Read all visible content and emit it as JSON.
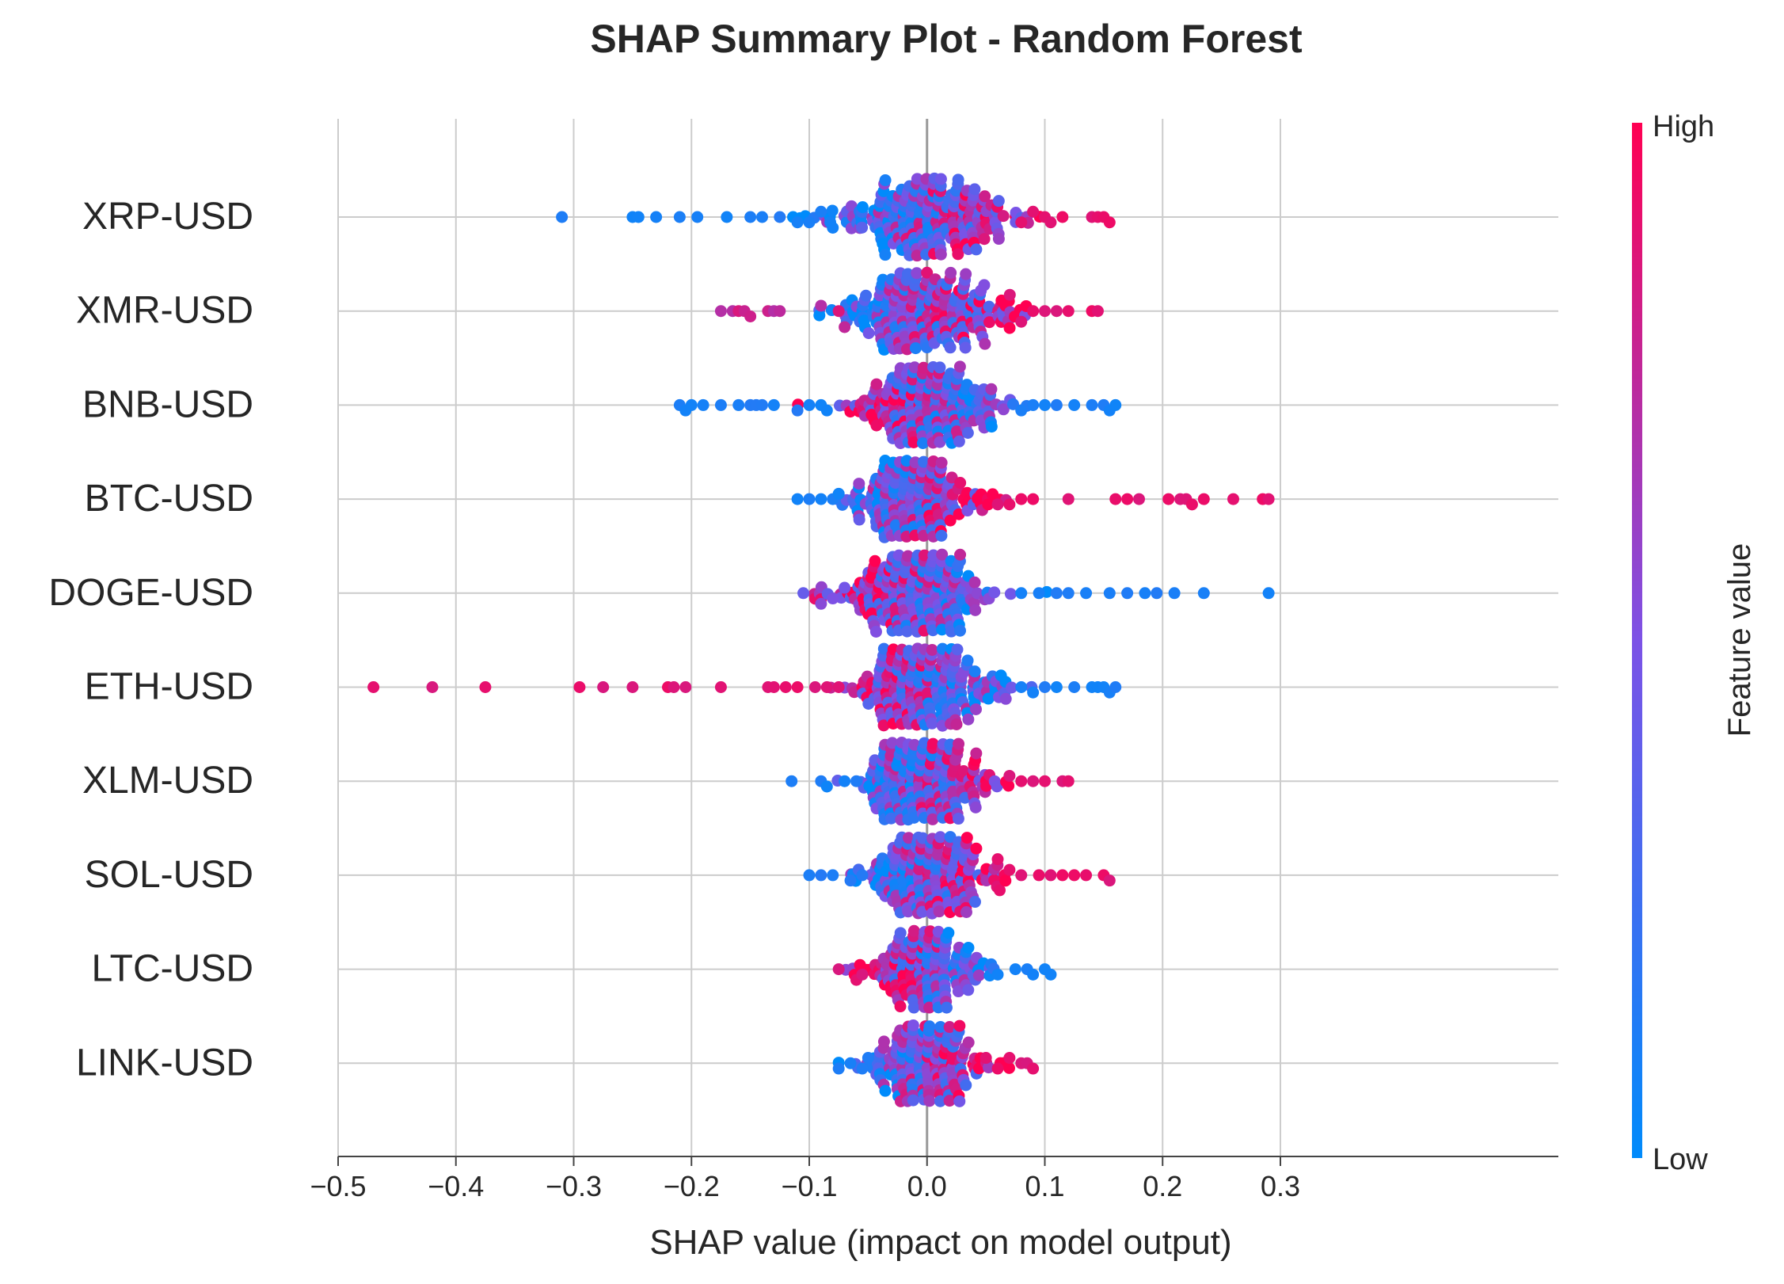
{
  "chart_data": {
    "type": "scatter",
    "subtype": "shap-beeswarm",
    "title": "SHAP Summary Plot - Random Forest",
    "xlabel": "SHAP value (impact on model output)",
    "ylabel": "",
    "xlim": [
      -0.5,
      0.33
    ],
    "x_ticks": [
      -0.5,
      -0.4,
      -0.3,
      -0.2,
      -0.1,
      0.0,
      0.1,
      0.2,
      0.3
    ],
    "x_tick_labels": [
      "−0.5",
      "−0.4",
      "−0.3",
      "−0.2",
      "−0.1",
      "0.0",
      "0.1",
      "0.2",
      "0.3"
    ],
    "grid": true,
    "zero_line": true,
    "colorbar": {
      "label": "Feature value",
      "high_label": "High",
      "low_label": "Low",
      "low_color": "#008bfb",
      "mid_color": "#7c52e6",
      "high_color": "#ff0052"
    },
    "features": [
      {
        "name": "XRP-USD",
        "min": -0.31,
        "max": 0.155,
        "center": 0.0,
        "spread": 0.05,
        "tail_left_color": "low",
        "tail_right_color": "high",
        "tail_left": [
          -0.31,
          -0.25,
          -0.245,
          -0.23,
          -0.21,
          -0.195,
          -0.17,
          -0.15,
          -0.14,
          -0.125,
          -0.11,
          -0.1,
          -0.09,
          -0.08
        ],
        "tail_right": [
          0.08,
          0.09,
          0.1,
          0.105,
          0.115,
          0.14,
          0.145,
          0.15,
          0.155
        ]
      },
      {
        "name": "XMR-USD",
        "min": -0.175,
        "max": 0.145,
        "center": 0.0,
        "spread": 0.045,
        "tail_left_color": "high-mid",
        "tail_right_color": "high",
        "tail_left": [
          -0.175,
          -0.165,
          -0.16,
          -0.155,
          -0.15,
          -0.135,
          -0.13,
          -0.125,
          -0.09,
          -0.075,
          -0.07
        ],
        "tail_right": [
          0.08,
          0.09,
          0.1,
          0.11,
          0.12,
          0.14,
          0.145
        ]
      },
      {
        "name": "BNB-USD",
        "min": -0.21,
        "max": 0.16,
        "center": 0.0,
        "spread": 0.04,
        "tail_left_color": "low",
        "tail_right_color": "low",
        "tail_left": [
          -0.21,
          -0.205,
          -0.2,
          -0.19,
          -0.175,
          -0.16,
          -0.15,
          -0.145,
          -0.14,
          -0.13,
          -0.11,
          -0.1,
          -0.09,
          -0.085
        ],
        "tail_right": [
          0.08,
          0.09,
          0.1,
          0.11,
          0.125,
          0.14,
          0.15,
          0.155,
          0.16
        ]
      },
      {
        "name": "BTC-USD",
        "min": -0.11,
        "max": 0.29,
        "center": -0.01,
        "spread": 0.035,
        "tail_left_color": "low",
        "tail_right_color": "high",
        "tail_left": [
          -0.11,
          -0.1,
          -0.09,
          -0.08,
          -0.075
        ],
        "tail_right": [
          0.06,
          0.07,
          0.08,
          0.09,
          0.12,
          0.16,
          0.17,
          0.18,
          0.205,
          0.215,
          0.22,
          0.225,
          0.235,
          0.26,
          0.285,
          0.29
        ]
      },
      {
        "name": "DOGE-USD",
        "min": -0.105,
        "max": 0.29,
        "center": -0.01,
        "spread": 0.04,
        "tail_left_color": "mid",
        "tail_right_color": "low",
        "tail_left": [
          -0.105,
          -0.09,
          -0.08,
          -0.07
        ],
        "tail_right": [
          0.08,
          0.095,
          0.11,
          0.12,
          0.135,
          0.155,
          0.17,
          0.185,
          0.195,
          0.21,
          0.235,
          0.29
        ]
      },
      {
        "name": "ETH-USD",
        "min": -0.47,
        "max": 0.16,
        "center": 0.0,
        "spread": 0.04,
        "tail_left_color": "high",
        "tail_right_color": "low",
        "tail_left": [
          -0.47,
          -0.42,
          -0.375,
          -0.295,
          -0.275,
          -0.25,
          -0.22,
          -0.215,
          -0.205,
          -0.175,
          -0.135,
          -0.13,
          -0.12,
          -0.11,
          -0.095,
          -0.085,
          -0.075
        ],
        "tail_right": [
          0.08,
          0.09,
          0.1,
          0.11,
          0.125,
          0.14,
          0.145,
          0.15,
          0.155,
          0.16
        ]
      },
      {
        "name": "XLM-USD",
        "min": -0.115,
        "max": 0.12,
        "center": 0.0,
        "spread": 0.035,
        "tail_left_color": "low",
        "tail_right_color": "high",
        "tail_left": [
          -0.115,
          -0.09,
          -0.085,
          -0.07,
          -0.06
        ],
        "tail_right": [
          0.07,
          0.08,
          0.09,
          0.1,
          0.115,
          0.12
        ]
      },
      {
        "name": "SOL-USD",
        "min": -0.1,
        "max": 0.155,
        "center": 0.0,
        "spread": 0.035,
        "tail_left_color": "low",
        "tail_right_color": "high",
        "tail_left": [
          -0.1,
          -0.09,
          -0.08,
          -0.065,
          -0.055
        ],
        "tail_right": [
          0.06,
          0.07,
          0.08,
          0.095,
          0.105,
          0.115,
          0.125,
          0.135,
          0.15,
          0.155
        ]
      },
      {
        "name": "LTC-USD",
        "min": -0.075,
        "max": 0.105,
        "center": 0.0,
        "spread": 0.03,
        "tail_left_color": "high",
        "tail_right_color": "low",
        "tail_left": [
          -0.075,
          -0.06,
          -0.055
        ],
        "tail_right": [
          0.06,
          0.075,
          0.085,
          0.09,
          0.1,
          0.105
        ]
      },
      {
        "name": "LINK-USD",
        "min": -0.075,
        "max": 0.09,
        "center": 0.0,
        "spread": 0.03,
        "tail_left_color": "low",
        "tail_right_color": "high",
        "tail_left": [
          -0.075,
          -0.065,
          -0.055,
          -0.05
        ],
        "tail_right": [
          0.05,
          0.06,
          0.07,
          0.08,
          0.085,
          0.09
        ]
      }
    ]
  }
}
